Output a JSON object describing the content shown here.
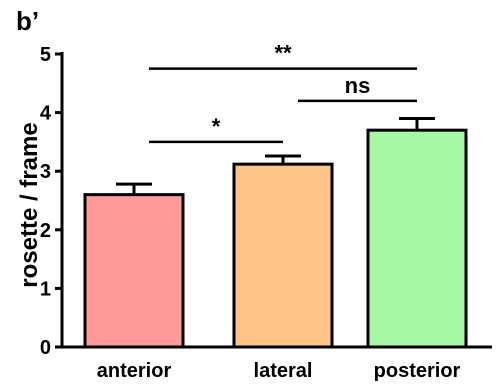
{
  "panel_label": "b’",
  "chart_data": {
    "type": "bar",
    "categories": [
      "anterior",
      "lateral",
      "posterior"
    ],
    "values": [
      2.6,
      3.12,
      3.7
    ],
    "errors": [
      0.18,
      0.14,
      0.2
    ],
    "colors": [
      "#ff9b9b",
      "#ffc48a",
      "#a7f7a4"
    ],
    "ylabel": "rosette / frame",
    "xlabel": "",
    "ylim": [
      0,
      5
    ],
    "yticks": [
      0,
      1,
      2,
      3,
      4,
      5
    ],
    "grid": false,
    "significance": [
      {
        "from": 0,
        "to": 1,
        "label": "*",
        "y": 3.5
      },
      {
        "from": 1,
        "to": 2,
        "label": "ns",
        "y": 4.2
      },
      {
        "from": 0,
        "to": 2,
        "label": "**",
        "y": 4.75
      }
    ]
  }
}
